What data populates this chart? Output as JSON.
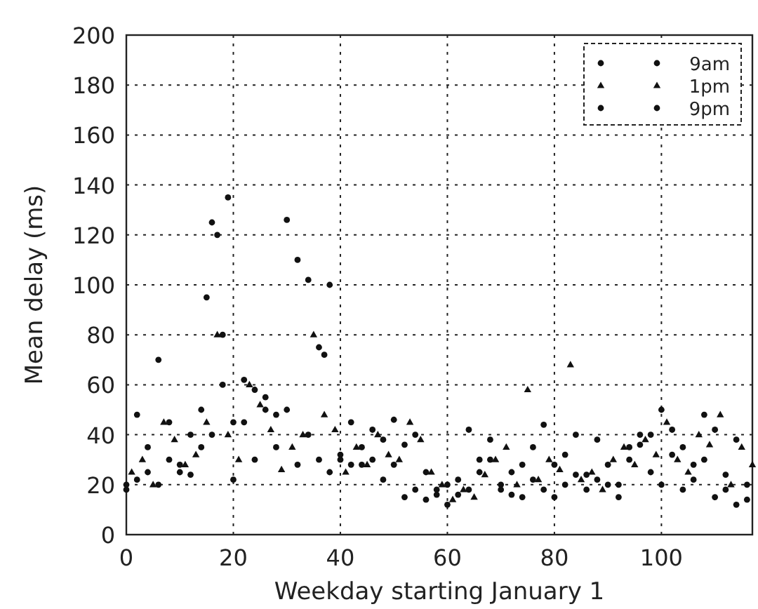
{
  "chart_data": {
    "type": "scatter",
    "xlabel": "Weekday starting January 1",
    "ylabel": "Mean delay (ms)",
    "xlim": [
      0,
      117
    ],
    "ylim": [
      0,
      200
    ],
    "xticks": [
      0,
      20,
      40,
      60,
      80,
      100
    ],
    "yticks": [
      0,
      20,
      40,
      60,
      80,
      100,
      120,
      140,
      160,
      180,
      200
    ],
    "grid": true,
    "legend": "top right",
    "series": [
      {
        "name": "9am",
        "color": "#111111",
        "marker": "circle",
        "x": [
          0,
          2,
          4,
          6,
          8,
          10,
          12,
          14,
          16,
          18,
          20,
          22,
          24,
          26,
          28,
          30,
          32,
          34,
          36,
          38,
          40,
          42,
          44,
          46,
          48,
          50,
          52,
          54,
          56,
          58,
          60,
          62,
          64,
          66,
          68,
          70,
          72,
          74,
          76,
          78,
          80,
          82,
          84,
          86,
          88,
          90,
          92,
          94,
          96,
          98,
          100,
          102,
          104,
          106,
          108,
          110,
          112,
          114,
          116
        ],
        "values": [
          18,
          22,
          25,
          20,
          30,
          28,
          24,
          35,
          40,
          60,
          22,
          45,
          30,
          50,
          48,
          50,
          28,
          40,
          30,
          25,
          32,
          28,
          35,
          30,
          22,
          28,
          15,
          18,
          14,
          16,
          20,
          22,
          18,
          25,
          30,
          20,
          16,
          28,
          22,
          18,
          15,
          20,
          24,
          18,
          22,
          28,
          20,
          35,
          40,
          25,
          20,
          32,
          18,
          22,
          30,
          15,
          24,
          12,
          20
        ]
      },
      {
        "name": "1pm",
        "color": "#111111",
        "marker": "triangle",
        "x": [
          1,
          3,
          5,
          7,
          9,
          11,
          13,
          15,
          17,
          19,
          21,
          23,
          25,
          27,
          29,
          31,
          33,
          35,
          37,
          39,
          41,
          43,
          45,
          47,
          49,
          51,
          53,
          55,
          57,
          59,
          61,
          63,
          65,
          67,
          69,
          71,
          73,
          75,
          77,
          79,
          81,
          83,
          85,
          87,
          89,
          91,
          93,
          95,
          97,
          99,
          101,
          103,
          105,
          107,
          109,
          111,
          113,
          115,
          117
        ],
        "values": [
          25,
          30,
          20,
          45,
          38,
          28,
          32,
          45,
          80,
          40,
          30,
          60,
          52,
          42,
          26,
          35,
          40,
          80,
          48,
          42,
          25,
          35,
          28,
          40,
          32,
          30,
          45,
          38,
          25,
          20,
          14,
          18,
          15,
          24,
          30,
          35,
          20,
          58,
          22,
          30,
          26,
          68,
          22,
          25,
          18,
          30,
          35,
          28,
          38,
          32,
          45,
          30,
          25,
          40,
          36,
          48,
          20,
          35,
          28
        ]
      },
      {
        "name": "9pm",
        "color": "#111111",
        "marker": "circle",
        "x": [
          0,
          2,
          4,
          6,
          8,
          10,
          12,
          14,
          15,
          16,
          17,
          18,
          19,
          20,
          22,
          24,
          26,
          28,
          30,
          32,
          34,
          36,
          37,
          38,
          40,
          42,
          44,
          46,
          48,
          50,
          52,
          54,
          56,
          58,
          60,
          62,
          64,
          66,
          68,
          70,
          72,
          74,
          76,
          78,
          80,
          82,
          84,
          86,
          88,
          90,
          92,
          94,
          96,
          98,
          100,
          102,
          104,
          106,
          108,
          110,
          112,
          114,
          116
        ],
        "values": [
          20,
          48,
          35,
          70,
          45,
          25,
          40,
          50,
          95,
          125,
          120,
          80,
          135,
          45,
          62,
          58,
          55,
          35,
          126,
          110,
          102,
          75,
          72,
          100,
          30,
          45,
          28,
          42,
          38,
          46,
          36,
          40,
          25,
          18,
          12,
          16,
          42,
          30,
          38,
          18,
          25,
          15,
          35,
          44,
          28,
          32,
          40,
          24,
          38,
          20,
          15,
          30,
          36,
          40,
          50,
          42,
          35,
          28,
          48,
          42,
          18,
          38,
          14
        ]
      }
    ]
  }
}
